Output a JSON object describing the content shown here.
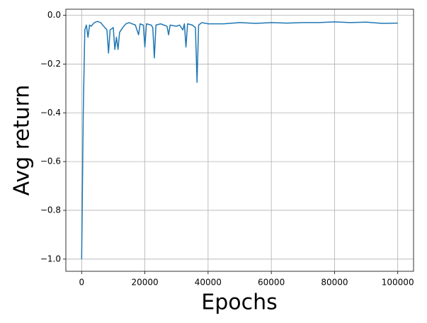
{
  "chart_data": {
    "type": "line",
    "xlabel": "Epochs",
    "ylabel": "Avg return",
    "x": [
      0,
      500,
      1000,
      1500,
      2000,
      2500,
      3000,
      4000,
      5000,
      6000,
      7000,
      8000,
      8500,
      9000,
      10000,
      10500,
      11000,
      11500,
      12000,
      13000,
      14000,
      15000,
      16000,
      17000,
      18000,
      18500,
      19500,
      20000,
      20500,
      22000,
      22500,
      23000,
      23500,
      25000,
      26000,
      27000,
      27500,
      28000,
      30000,
      31000,
      32000,
      32500,
      33000,
      33500,
      35000,
      36000,
      36500,
      37000,
      38000,
      40000,
      45000,
      50000,
      55000,
      60000,
      65000,
      70000,
      75000,
      80000,
      85000,
      90000,
      95000,
      100000
    ],
    "series": [
      {
        "color": "#1f77b4",
        "values": [
          -1.0,
          -0.4,
          -0.06,
          -0.04,
          -0.09,
          -0.04,
          -0.045,
          -0.03,
          -0.025,
          -0.03,
          -0.045,
          -0.06,
          -0.155,
          -0.06,
          -0.05,
          -0.14,
          -0.09,
          -0.14,
          -0.07,
          -0.05,
          -0.035,
          -0.03,
          -0.035,
          -0.04,
          -0.08,
          -0.035,
          -0.04,
          -0.13,
          -0.035,
          -0.04,
          -0.05,
          -0.175,
          -0.04,
          -0.035,
          -0.04,
          -0.045,
          -0.08,
          -0.04,
          -0.045,
          -0.04,
          -0.06,
          -0.035,
          -0.13,
          -0.035,
          -0.04,
          -0.05,
          -0.275,
          -0.04,
          -0.03,
          -0.035,
          -0.035,
          -0.03,
          -0.033,
          -0.03,
          -0.032,
          -0.03,
          -0.03,
          -0.027,
          -0.03,
          -0.028,
          -0.033,
          -0.032
        ]
      }
    ],
    "xlim": [
      -5000,
      105000
    ],
    "xticks": [
      0,
      20000,
      40000,
      60000,
      80000,
      100000
    ],
    "ylim": [
      -1.05,
      0.025
    ],
    "yticks": [
      {
        "value": -1.0,
        "label": "−1.0"
      },
      {
        "value": -0.8,
        "label": "−0.8"
      },
      {
        "value": -0.6,
        "label": "−0.6"
      },
      {
        "value": -0.4,
        "label": "−0.4"
      },
      {
        "value": -0.2,
        "label": "−0.2"
      },
      {
        "value": 0,
        "label": "0.0"
      }
    ],
    "grid": true
  }
}
